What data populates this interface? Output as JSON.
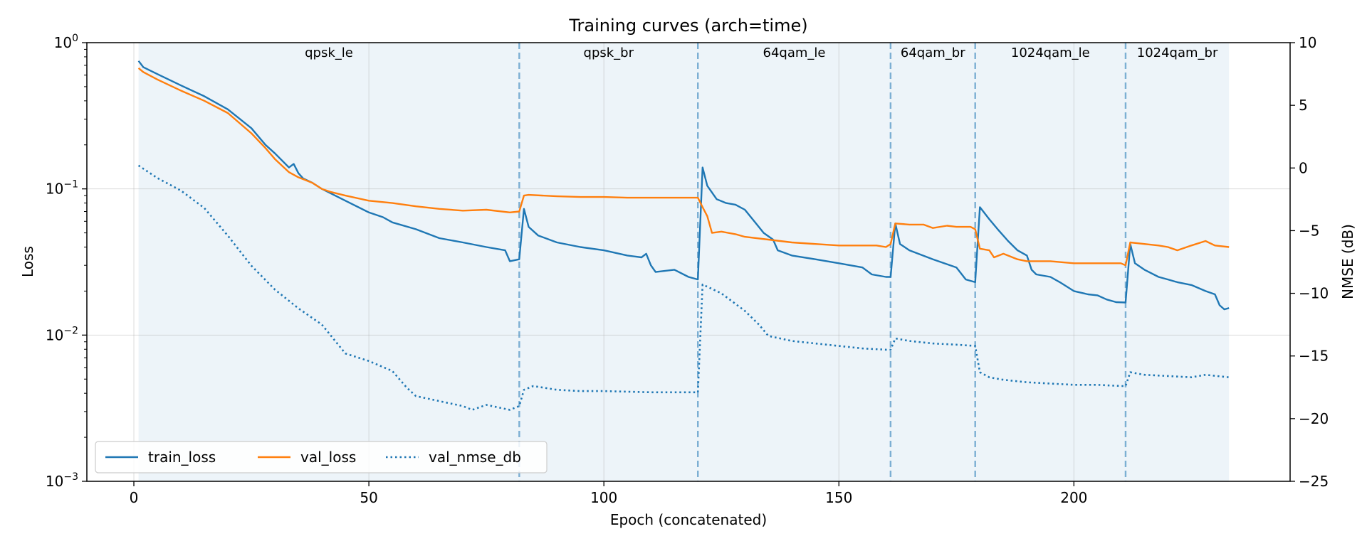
{
  "chart_data": {
    "type": "line",
    "title": "Training curves (arch=time)",
    "xlabel": "Epoch (concatenated)",
    "ylabel": "Loss",
    "y2label": "NMSE (dB)",
    "xlim": [
      -10,
      246
    ],
    "ylim": [
      0.001,
      1
    ],
    "y_scale": "log",
    "y2lim": [
      -25,
      10
    ],
    "x_ticks": [
      0,
      50,
      100,
      150,
      200
    ],
    "y_ticks": [
      {
        "value": 0.001,
        "base": "10",
        "exp": "−3"
      },
      {
        "value": 0.01,
        "base": "10",
        "exp": "−2"
      },
      {
        "value": 0.1,
        "base": "10",
        "exp": "−1"
      },
      {
        "value": 1,
        "base": "10",
        "exp": "0"
      }
    ],
    "y2_ticks": [
      10,
      5,
      0,
      -5,
      -10,
      -15,
      -20,
      -25
    ],
    "y2_tick_labels": [
      "10",
      "5",
      "0",
      "−5",
      "−10",
      "−15",
      "−20",
      "−25"
    ],
    "grid": true,
    "legend_position": "bottom-left",
    "phases": [
      {
        "name": "qpsk_le",
        "start": 1,
        "end": 82
      },
      {
        "name": "qpsk_br",
        "start": 82,
        "end": 120
      },
      {
        "name": "64qam_le",
        "start": 120,
        "end": 161
      },
      {
        "name": "64qam_br",
        "start": 161,
        "end": 179
      },
      {
        "name": "1024qam_le",
        "start": 179,
        "end": 211
      },
      {
        "name": "1024qam_br",
        "start": 211,
        "end": 233
      }
    ],
    "boundaries": [
      82,
      120,
      161,
      179,
      211
    ],
    "series": [
      {
        "name": "train_loss",
        "axis": "left",
        "color": "#1f77b4",
        "style": "solid",
        "points": [
          [
            1,
            0.75
          ],
          [
            2,
            0.68
          ],
          [
            5,
            0.61
          ],
          [
            10,
            0.51
          ],
          [
            15,
            0.43
          ],
          [
            20,
            0.35
          ],
          [
            25,
            0.26
          ],
          [
            28,
            0.2
          ],
          [
            30,
            0.175
          ],
          [
            33,
            0.14
          ],
          [
            34,
            0.148
          ],
          [
            35,
            0.128
          ],
          [
            36,
            0.118
          ],
          [
            38,
            0.11
          ],
          [
            40,
            0.1
          ],
          [
            45,
            0.083
          ],
          [
            50,
            0.069
          ],
          [
            53,
            0.064
          ],
          [
            55,
            0.059
          ],
          [
            60,
            0.053
          ],
          [
            65,
            0.046
          ],
          [
            70,
            0.043
          ],
          [
            75,
            0.04
          ],
          [
            79,
            0.038
          ],
          [
            80,
            0.032
          ],
          [
            82,
            0.033
          ],
          [
            83,
            0.073
          ],
          [
            84,
            0.055
          ],
          [
            86,
            0.048
          ],
          [
            90,
            0.043
          ],
          [
            95,
            0.04
          ],
          [
            100,
            0.038
          ],
          [
            105,
            0.035
          ],
          [
            108,
            0.034
          ],
          [
            109,
            0.036
          ],
          [
            110,
            0.03
          ],
          [
            111,
            0.027
          ],
          [
            115,
            0.028
          ],
          [
            118,
            0.025
          ],
          [
            120,
            0.024
          ],
          [
            121,
            0.14
          ],
          [
            122,
            0.105
          ],
          [
            124,
            0.085
          ],
          [
            126,
            0.08
          ],
          [
            128,
            0.078
          ],
          [
            130,
            0.072
          ],
          [
            132,
            0.06
          ],
          [
            134,
            0.05
          ],
          [
            136,
            0.045
          ],
          [
            137,
            0.038
          ],
          [
            140,
            0.035
          ],
          [
            145,
            0.033
          ],
          [
            150,
            0.031
          ],
          [
            155,
            0.029
          ],
          [
            157,
            0.026
          ],
          [
            160,
            0.025
          ],
          [
            161,
            0.025
          ],
          [
            162,
            0.058
          ],
          [
            163,
            0.042
          ],
          [
            165,
            0.038
          ],
          [
            170,
            0.033
          ],
          [
            175,
            0.029
          ],
          [
            177,
            0.024
          ],
          [
            178,
            0.0235
          ],
          [
            179,
            0.023
          ],
          [
            180,
            0.075
          ],
          [
            182,
            0.062
          ],
          [
            184,
            0.052
          ],
          [
            186,
            0.044
          ],
          [
            188,
            0.038
          ],
          [
            190,
            0.035
          ],
          [
            191,
            0.028
          ],
          [
            192,
            0.026
          ],
          [
            195,
            0.025
          ],
          [
            197,
            0.023
          ],
          [
            200,
            0.02
          ],
          [
            203,
            0.019
          ],
          [
            205,
            0.0187
          ],
          [
            207,
            0.0175
          ],
          [
            209,
            0.0168
          ],
          [
            211,
            0.0167
          ],
          [
            212,
            0.042
          ],
          [
            213,
            0.031
          ],
          [
            215,
            0.028
          ],
          [
            218,
            0.025
          ],
          [
            220,
            0.024
          ],
          [
            222,
            0.023
          ],
          [
            225,
            0.022
          ],
          [
            228,
            0.02
          ],
          [
            230,
            0.019
          ],
          [
            231,
            0.016
          ],
          [
            232,
            0.015
          ],
          [
            233,
            0.0153
          ]
        ]
      },
      {
        "name": "val_loss",
        "axis": "left",
        "color": "#ff7f0e",
        "style": "solid",
        "points": [
          [
            1,
            0.67
          ],
          [
            2,
            0.63
          ],
          [
            5,
            0.56
          ],
          [
            10,
            0.47
          ],
          [
            15,
            0.4
          ],
          [
            20,
            0.33
          ],
          [
            25,
            0.24
          ],
          [
            28,
            0.19
          ],
          [
            30,
            0.16
          ],
          [
            33,
            0.13
          ],
          [
            35,
            0.12
          ],
          [
            38,
            0.11
          ],
          [
            40,
            0.1
          ],
          [
            42,
            0.095
          ],
          [
            45,
            0.09
          ],
          [
            50,
            0.083
          ],
          [
            55,
            0.08
          ],
          [
            60,
            0.076
          ],
          [
            65,
            0.073
          ],
          [
            70,
            0.071
          ],
          [
            75,
            0.072
          ],
          [
            80,
            0.069
          ],
          [
            82,
            0.07
          ],
          [
            83,
            0.09
          ],
          [
            84,
            0.091
          ],
          [
            90,
            0.089
          ],
          [
            95,
            0.088
          ],
          [
            100,
            0.088
          ],
          [
            105,
            0.087
          ],
          [
            110,
            0.087
          ],
          [
            115,
            0.087
          ],
          [
            120,
            0.087
          ],
          [
            121,
            0.075
          ],
          [
            122,
            0.065
          ],
          [
            123,
            0.05
          ],
          [
            125,
            0.051
          ],
          [
            128,
            0.049
          ],
          [
            130,
            0.047
          ],
          [
            135,
            0.045
          ],
          [
            140,
            0.043
          ],
          [
            145,
            0.042
          ],
          [
            150,
            0.041
          ],
          [
            155,
            0.041
          ],
          [
            158,
            0.041
          ],
          [
            160,
            0.04
          ],
          [
            161,
            0.042
          ],
          [
            162,
            0.058
          ],
          [
            165,
            0.057
          ],
          [
            168,
            0.057
          ],
          [
            170,
            0.054
          ],
          [
            173,
            0.056
          ],
          [
            175,
            0.055
          ],
          [
            178,
            0.055
          ],
          [
            179,
            0.053
          ],
          [
            180,
            0.039
          ],
          [
            182,
            0.038
          ],
          [
            183,
            0.034
          ],
          [
            185,
            0.036
          ],
          [
            188,
            0.033
          ],
          [
            190,
            0.032
          ],
          [
            195,
            0.032
          ],
          [
            200,
            0.031
          ],
          [
            205,
            0.031
          ],
          [
            210,
            0.031
          ],
          [
            211,
            0.03
          ],
          [
            212,
            0.043
          ],
          [
            215,
            0.042
          ],
          [
            218,
            0.041
          ],
          [
            220,
            0.04
          ],
          [
            222,
            0.038
          ],
          [
            225,
            0.041
          ],
          [
            228,
            0.044
          ],
          [
            230,
            0.041
          ],
          [
            233,
            0.04
          ]
        ]
      },
      {
        "name": "val_nmse_db",
        "axis": "right",
        "color": "#1f77b4",
        "style": "dotted",
        "points": [
          [
            1,
            0.2
          ],
          [
            5,
            -0.8
          ],
          [
            10,
            -1.8
          ],
          [
            15,
            -3.2
          ],
          [
            20,
            -5.4
          ],
          [
            25,
            -7.8
          ],
          [
            30,
            -9.7
          ],
          [
            35,
            -11.2
          ],
          [
            40,
            -12.5
          ],
          [
            45,
            -14.8
          ],
          [
            50,
            -15.4
          ],
          [
            55,
            -16.2
          ],
          [
            58,
            -17.5
          ],
          [
            60,
            -18.2
          ],
          [
            65,
            -18.6
          ],
          [
            70,
            -19
          ],
          [
            72,
            -19.3
          ],
          [
            75,
            -18.9
          ],
          [
            80,
            -19.3
          ],
          [
            82,
            -19
          ],
          [
            83,
            -17.7
          ],
          [
            85,
            -17.4
          ],
          [
            90,
            -17.7
          ],
          [
            95,
            -17.8
          ],
          [
            100,
            -17.8
          ],
          [
            110,
            -17.9
          ],
          [
            120,
            -17.9
          ],
          [
            121,
            -9.3
          ],
          [
            125,
            -10
          ],
          [
            130,
            -11.4
          ],
          [
            133,
            -12.5
          ],
          [
            135,
            -13.4
          ],
          [
            140,
            -13.8
          ],
          [
            145,
            -14
          ],
          [
            150,
            -14.2
          ],
          [
            155,
            -14.4
          ],
          [
            160,
            -14.5
          ],
          [
            161,
            -14.5
          ],
          [
            162,
            -13.6
          ],
          [
            165,
            -13.8
          ],
          [
            170,
            -14
          ],
          [
            175,
            -14.1
          ],
          [
            179,
            -14.2
          ],
          [
            180,
            -16.3
          ],
          [
            182,
            -16.7
          ],
          [
            185,
            -16.9
          ],
          [
            190,
            -17.1
          ],
          [
            195,
            -17.2
          ],
          [
            200,
            -17.3
          ],
          [
            205,
            -17.3
          ],
          [
            210,
            -17.4
          ],
          [
            211,
            -17.4
          ],
          [
            212,
            -16.3
          ],
          [
            215,
            -16.5
          ],
          [
            220,
            -16.6
          ],
          [
            225,
            -16.7
          ],
          [
            228,
            -16.5
          ],
          [
            233,
            -16.7
          ]
        ]
      }
    ]
  }
}
